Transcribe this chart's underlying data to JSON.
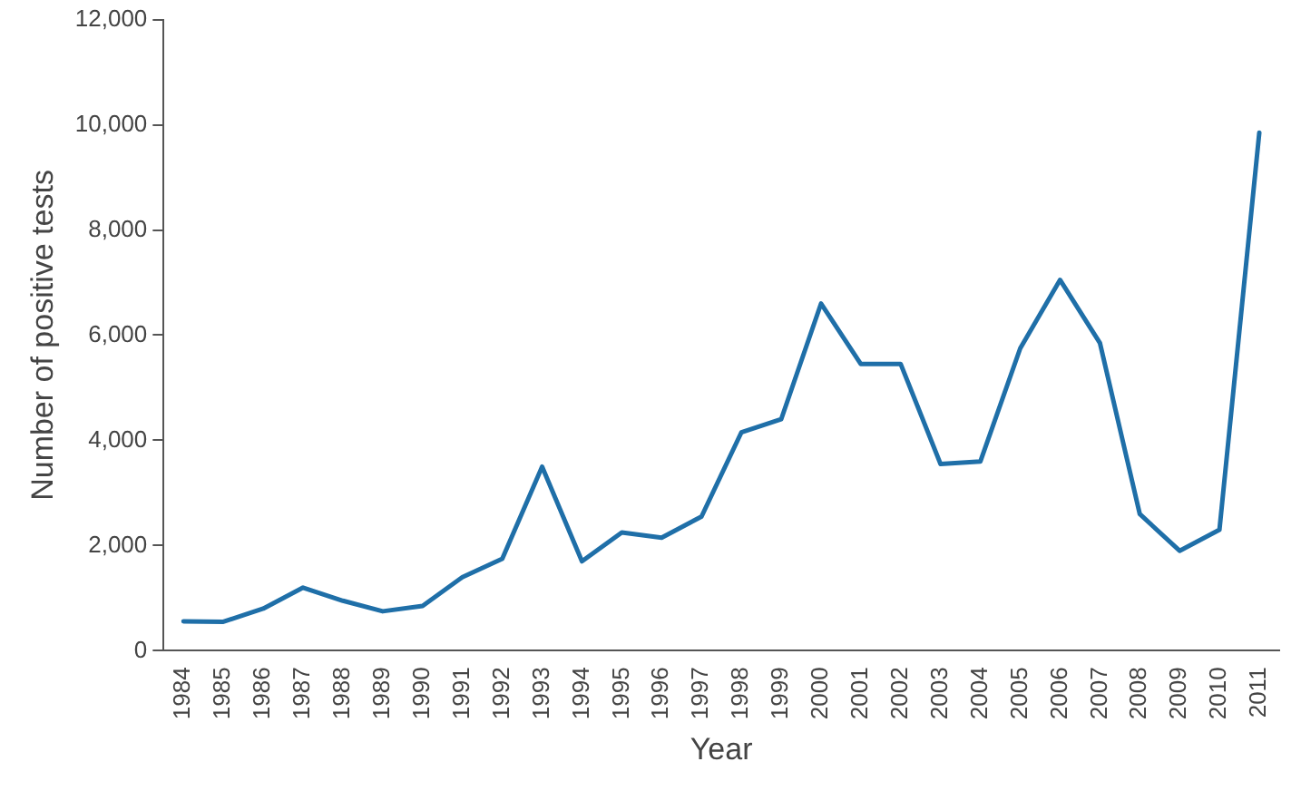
{
  "chart_data": {
    "type": "line",
    "xlabel": "Year",
    "ylabel": "Number of positive tests",
    "categories": [
      "1984",
      "1985",
      "1986",
      "1987",
      "1988",
      "1989",
      "1990",
      "1991",
      "1992",
      "1993",
      "1994",
      "1995",
      "1996",
      "1997",
      "1998",
      "1999",
      "2000",
      "2001",
      "2002",
      "2003",
      "2004",
      "2005",
      "2006",
      "2007",
      "2008",
      "2009",
      "2010",
      "2011"
    ],
    "series": [
      {
        "color": "#1f6fa8",
        "values": [
          560,
          550,
          800,
          1200,
          950,
          750,
          850,
          1400,
          1750,
          3500,
          1700,
          2250,
          2150,
          2550,
          4150,
          4400,
          6600,
          5450,
          5450,
          3550,
          3600,
          5750,
          7050,
          5850,
          2600,
          1900,
          2300,
          9850
        ]
      }
    ],
    "ylim": [
      0,
      12000
    ],
    "yticks": [
      {
        "value": 0,
        "label": "0"
      },
      {
        "value": 2000,
        "label": "2,000"
      },
      {
        "value": 4000,
        "label": "4,000"
      },
      {
        "value": 6000,
        "label": "6,000"
      },
      {
        "value": 8000,
        "label": "8,000"
      },
      {
        "value": 10000,
        "label": "10,000"
      },
      {
        "value": 12000,
        "label": "12,000"
      }
    ],
    "grid": false,
    "legend": false,
    "marker": "none",
    "line_style": "solid"
  }
}
